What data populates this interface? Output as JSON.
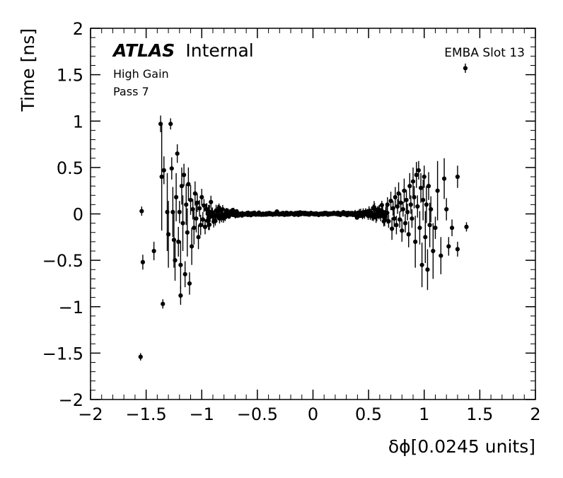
{
  "chart_data": {
    "type": "scatter",
    "title": "",
    "xlabel": "δϕ[0.0245 units]",
    "ylabel": "Time [ns]",
    "xlim": [
      -2,
      2
    ],
    "ylim": [
      -2,
      2
    ],
    "xticks": [
      -2,
      -1.5,
      -1,
      -0.5,
      0,
      0.5,
      1,
      1.5,
      2
    ],
    "yticks": [
      -2,
      -1.5,
      -1,
      -0.5,
      0,
      0.5,
      1,
      1.5,
      2
    ],
    "minor_tick_step": 0.1,
    "grid": false,
    "legend_position": "none",
    "marker_color": "#000000",
    "annotations": {
      "wordmark": "ATLAS",
      "wordmark_suffix": "Internal",
      "subtitle_lines": [
        "High Gain",
        "Pass 7"
      ],
      "corner_label": "EMBA Slot 13"
    },
    "points": [
      [
        -1.55,
        -1.54,
        0.04
      ],
      [
        -1.54,
        0.03,
        0.05
      ],
      [
        -1.53,
        -0.52,
        0.08
      ],
      [
        -1.43,
        -0.4,
        0.1
      ],
      [
        -1.37,
        0.97,
        0.09
      ],
      [
        -1.36,
        0.4,
        0.58
      ],
      [
        -1.35,
        -0.97,
        0.05
      ],
      [
        -1.34,
        0.47,
        0.15
      ],
      [
        -1.31,
        0.02,
        0.42
      ],
      [
        -1.3,
        -0.22,
        0.36
      ],
      [
        -1.28,
        0.97,
        0.06
      ],
      [
        -1.27,
        0.49,
        0.12
      ],
      [
        -1.26,
        0.02,
        0.27
      ],
      [
        -1.25,
        -0.28,
        0.3
      ],
      [
        -1.24,
        -0.5,
        0.22
      ],
      [
        -1.23,
        0.18,
        0.26
      ],
      [
        -1.22,
        0.65,
        0.1
      ],
      [
        -1.21,
        -0.3,
        0.16
      ],
      [
        -1.2,
        0.02,
        0.12
      ],
      [
        -1.19,
        -0.88,
        0.1
      ],
      [
        -1.19,
        -0.55,
        0.26
      ],
      [
        -1.18,
        0.3,
        0.2
      ],
      [
        -1.17,
        -0.1,
        0.3
      ],
      [
        -1.16,
        0.42,
        0.12
      ],
      [
        -1.15,
        -0.65,
        0.14
      ],
      [
        -1.14,
        0.1,
        0.22
      ],
      [
        -1.13,
        -0.2,
        0.26
      ],
      [
        -1.12,
        0.32,
        0.18
      ],
      [
        -1.11,
        -0.75,
        0.12
      ],
      [
        -1.1,
        0.15,
        0.16
      ],
      [
        -1.09,
        -0.35,
        0.2
      ],
      [
        -1.08,
        0.05,
        0.11
      ],
      [
        -1.07,
        -0.15,
        0.18
      ],
      [
        -1.06,
        0.22,
        0.13
      ],
      [
        -1.05,
        -0.05,
        0.15
      ],
      [
        -1.04,
        0.12,
        0.1
      ],
      [
        -1.03,
        -0.25,
        0.13
      ],
      [
        -1.02,
        0.06,
        0.09
      ],
      [
        -1.01,
        -0.12,
        0.11
      ],
      [
        -1.0,
        0.18,
        0.09
      ],
      [
        -0.99,
        -0.06,
        0.08
      ],
      [
        -0.98,
        0.09,
        0.07
      ],
      [
        -0.97,
        -0.14,
        0.08
      ],
      [
        -0.96,
        0.05,
        0.06
      ],
      [
        0.67,
        0.1,
        0.08
      ],
      [
        0.68,
        -0.08,
        0.07
      ],
      [
        0.7,
        0.14,
        0.1
      ],
      [
        0.71,
        -0.16,
        0.12
      ],
      [
        0.72,
        0.06,
        0.08
      ],
      [
        0.73,
        -0.05,
        0.09
      ],
      [
        0.74,
        0.18,
        0.11
      ],
      [
        0.75,
        -0.12,
        0.1
      ],
      [
        0.76,
        0.08,
        0.08
      ],
      [
        0.77,
        0.22,
        0.12
      ],
      [
        0.78,
        -0.06,
        0.09
      ],
      [
        0.79,
        0.12,
        0.1
      ],
      [
        0.8,
        -0.18,
        0.12
      ],
      [
        0.81,
        0.05,
        0.08
      ],
      [
        0.82,
        0.25,
        0.13
      ],
      [
        0.83,
        -0.1,
        0.1
      ],
      [
        0.84,
        0.15,
        0.11
      ],
      [
        0.85,
        0.02,
        0.09
      ],
      [
        0.86,
        -0.22,
        0.14
      ],
      [
        0.87,
        0.3,
        0.14
      ],
      [
        0.88,
        0.1,
        0.1
      ],
      [
        0.89,
        -0.05,
        0.1
      ],
      [
        0.9,
        0.35,
        0.15
      ],
      [
        0.91,
        0.18,
        0.12
      ],
      [
        0.92,
        -0.3,
        0.28
      ],
      [
        0.93,
        0.42,
        0.14
      ],
      [
        0.94,
        0.08,
        0.12
      ],
      [
        0.95,
        0.47,
        0.1
      ],
      [
        0.96,
        -0.15,
        0.18
      ],
      [
        0.97,
        0.28,
        0.16
      ],
      [
        0.98,
        -0.55,
        0.24
      ],
      [
        0.99,
        0.15,
        0.22
      ],
      [
        1.0,
        0.4,
        0.12
      ],
      [
        1.01,
        -0.25,
        0.28
      ],
      [
        1.02,
        0.1,
        0.2
      ],
      [
        1.03,
        -0.6,
        0.22
      ],
      [
        1.04,
        0.3,
        0.15
      ],
      [
        1.05,
        -0.12,
        0.24
      ],
      [
        1.06,
        0.05,
        0.14
      ],
      [
        1.08,
        -0.4,
        0.3
      ],
      [
        1.1,
        -0.15,
        0.12
      ],
      [
        1.12,
        0.25,
        0.32
      ],
      [
        1.15,
        -0.45,
        0.2
      ],
      [
        1.18,
        0.38,
        0.22
      ],
      [
        1.2,
        0.05,
        0.12
      ],
      [
        1.22,
        -0.35,
        0.1
      ],
      [
        1.25,
        -0.15,
        0.09
      ],
      [
        1.3,
        0.4,
        0.12
      ],
      [
        1.3,
        -0.38,
        0.08
      ],
      [
        1.37,
        1.57,
        0.05
      ],
      [
        1.38,
        -0.14,
        0.05
      ]
    ],
    "dense_band": {
      "x_min": -0.955,
      "x_max": 0.665,
      "n": 300,
      "sigma_min": 0.006,
      "sigma_max": 0.065,
      "err_min": 0.01,
      "err_max": 0.055,
      "seed": 42
    }
  }
}
